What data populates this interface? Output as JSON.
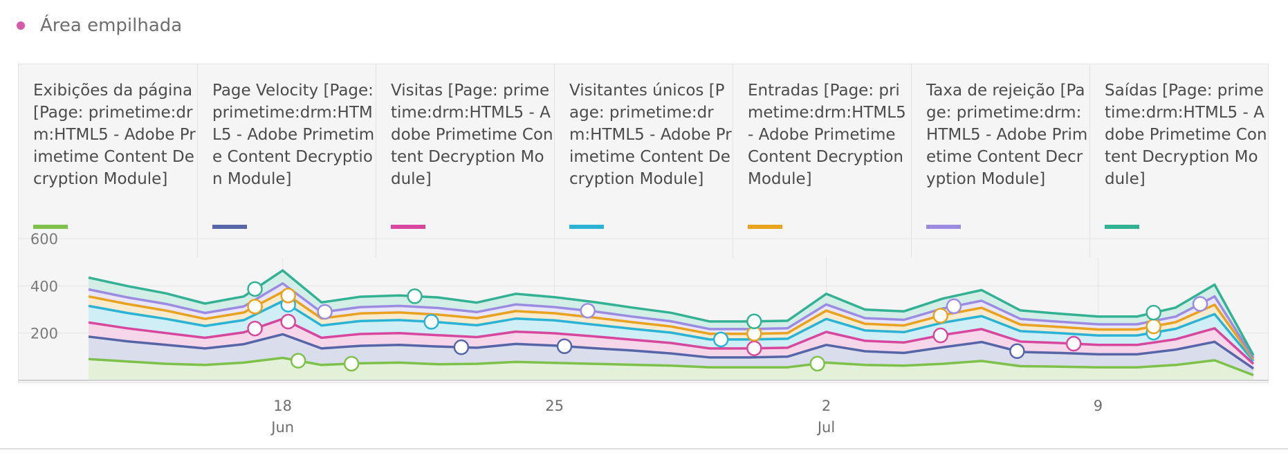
{
  "chart_header": {
    "title": "Área empilhada",
    "dot_color": "#d65aa8"
  },
  "chart_data": {
    "type": "area",
    "stacked": true,
    "x": [
      "2024-06-13",
      "2024-06-14",
      "2024-06-15",
      "2024-06-16",
      "2024-06-17",
      "2024-06-18",
      "2024-06-19",
      "2024-06-20",
      "2024-06-21",
      "2024-06-22",
      "2024-06-23",
      "2024-06-24",
      "2024-06-25",
      "2024-06-26",
      "2024-06-27",
      "2024-06-28",
      "2024-06-29",
      "2024-06-30",
      "2024-07-01",
      "2024-07-02",
      "2024-07-03",
      "2024-07-04",
      "2024-07-05",
      "2024-07-06",
      "2024-07-07",
      "2024-07-08",
      "2024-07-09",
      "2024-07-10",
      "2024-07-11",
      "2024-07-12",
      "2024-07-13"
    ],
    "xticks": [
      {
        "date": "2024-06-18",
        "day": "18",
        "month": "Jun"
      },
      {
        "date": "2024-06-25",
        "day": "25",
        "month": ""
      },
      {
        "date": "2024-07-02",
        "day": "2",
        "month": "Jul"
      },
      {
        "date": "2024-07-09",
        "day": "9",
        "month": ""
      }
    ],
    "yticks": [
      "600",
      "400",
      "200"
    ],
    "ylim": [
      0,
      600
    ],
    "grid": true,
    "series": [
      {
        "name": "Exibições da página [Page: primetime:drm:HTML5 - Adobe Primetime Content Decryption Module]",
        "color": "#7dc04a",
        "values": [
          90,
          80,
          70,
          65,
          75,
          95,
          65,
          72,
          75,
          68,
          70,
          78,
          74,
          70,
          66,
          62,
          55,
          55,
          55,
          75,
          65,
          62,
          70,
          82,
          60,
          58,
          55,
          55,
          65,
          85,
          22
        ]
      },
      {
        "name": "Page Velocity [Page: primetime:drm:HTML5 - Adobe Primetime Content Decryption Module]",
        "color": "#5565a8",
        "values": [
          95,
          85,
          80,
          70,
          78,
          100,
          70,
          74,
          75,
          75,
          68,
          76,
          73,
          66,
          60,
          52,
          42,
          42,
          45,
          75,
          58,
          54,
          70,
          80,
          60,
          58,
          55,
          55,
          65,
          78,
          28
        ]
      },
      {
        "name": "Visitas [Page: primetime:drm:HTML5 - Adobe Primetime Content Decryption Module]",
        "color": "#d6479d",
        "values": [
          60,
          55,
          50,
          45,
          50,
          65,
          45,
          50,
          50,
          48,
          45,
          52,
          52,
          50,
          46,
          44,
          38,
          38,
          38,
          55,
          44,
          44,
          52,
          55,
          44,
          42,
          40,
          40,
          44,
          57,
          20
        ]
      },
      {
        "name": "Visitantes únicos [Page: primetime:drm:HTML5 - Adobe Primetime Content Decryption Module]",
        "color": "#2bb3d6",
        "values": [
          70,
          65,
          60,
          50,
          52,
          75,
          52,
          55,
          55,
          55,
          50,
          55,
          55,
          50,
          46,
          44,
          38,
          38,
          38,
          55,
          44,
          44,
          52,
          55,
          44,
          42,
          40,
          40,
          44,
          60,
          12
        ]
      },
      {
        "name": "Entradas [Page: primetime:drm:HTML5 - Adobe Primetime Content Decryption Module]",
        "color": "#e8a21e",
        "values": [
          40,
          38,
          35,
          30,
          32,
          40,
          30,
          32,
          32,
          32,
          30,
          32,
          30,
          30,
          28,
          26,
          24,
          24,
          24,
          35,
          28,
          28,
          32,
          35,
          28,
          26,
          25,
          25,
          28,
          40,
          8
        ]
      },
      {
        "name": "Taxa de rejeição [Page: primetime:drm:HTML5 - Adobe Primetime Content Decryption Module]",
        "color": "#9b8ce2",
        "values": [
          30,
          28,
          28,
          25,
          26,
          35,
          26,
          27,
          28,
          28,
          26,
          28,
          26,
          26,
          24,
          22,
          20,
          20,
          20,
          26,
          24,
          24,
          28,
          30,
          24,
          22,
          22,
          22,
          24,
          35,
          6
        ]
      },
      {
        "name": "Saídas [Page: primetime:drm:HTML5 - Adobe Primetime Content Decryption Module]",
        "color": "#33b193",
        "values": [
          50,
          48,
          45,
          40,
          42,
          55,
          42,
          44,
          44,
          45,
          40,
          45,
          42,
          40,
          38,
          36,
          32,
          32,
          32,
          45,
          36,
          36,
          42,
          45,
          36,
          34,
          33,
          33,
          38,
          50,
          10
        ]
      }
    ],
    "markers": [
      {
        "series": 0,
        "index": 7.9
      },
      {
        "series": 1,
        "index": 11.2
      },
      {
        "series": 1,
        "index": 14.3
      },
      {
        "series": 1,
        "index": 27.9
      },
      {
        "series": 0,
        "index": 21.9
      },
      {
        "series": 0,
        "index": 6.3
      },
      {
        "series": 2,
        "index": 5.0
      },
      {
        "series": 2,
        "index": 6.0
      },
      {
        "series": 2,
        "index": 20.0
      },
      {
        "series": 2,
        "index": 25.6
      },
      {
        "series": 2,
        "index": 29.6
      },
      {
        "series": 3,
        "index": 6.0
      },
      {
        "series": 3,
        "index": 10.3
      },
      {
        "series": 3,
        "index": 19.0
      },
      {
        "series": 3,
        "index": 32.0
      },
      {
        "series": 4,
        "index": 5.0
      },
      {
        "series": 4,
        "index": 6.0
      },
      {
        "series": 4,
        "index": 20.0
      },
      {
        "series": 4,
        "index": 25.6
      },
      {
        "series": 4,
        "index": 32.0
      },
      {
        "series": 5,
        "index": 7.1
      },
      {
        "series": 5,
        "index": 15.0
      },
      {
        "series": 5,
        "index": 26.0
      },
      {
        "series": 5,
        "index": 33.4
      },
      {
        "series": 6,
        "index": 5.0
      },
      {
        "series": 6,
        "index": 9.8
      },
      {
        "series": 6,
        "index": 20.0
      },
      {
        "series": 6,
        "index": 32.0
      }
    ]
  }
}
